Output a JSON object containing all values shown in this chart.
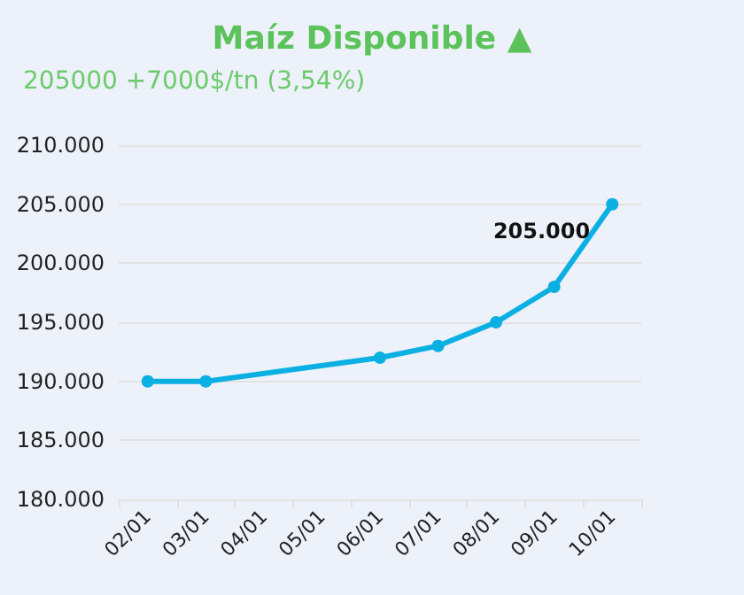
{
  "chart_data": {
    "type": "line",
    "title": "Maíz Disponible ▲",
    "subtitle": "205000 +7000$/tn (3,54%)",
    "categories": [
      "02/01",
      "03/01",
      "04/01",
      "05/01",
      "06/01",
      "07/01",
      "08/01",
      "09/01",
      "10/01"
    ],
    "series": [
      {
        "color": "#0bb0e3",
        "values": [
          190000,
          190000,
          null,
          null,
          192000,
          193000,
          195000,
          198000,
          205000
        ],
        "value_labels": [
          null,
          null,
          null,
          null,
          null,
          null,
          null,
          null,
          "205.000"
        ]
      }
    ],
    "ylim": [
      180000,
      210000
    ],
    "yticks": [
      {
        "value": 180000,
        "label": "180.000"
      },
      {
        "value": 185000,
        "label": "185.000"
      },
      {
        "value": 190000,
        "label": "190.000"
      },
      {
        "value": 195000,
        "label": "195.000"
      },
      {
        "value": 200000,
        "label": "200.000"
      },
      {
        "value": 205000,
        "label": "205.000"
      },
      {
        "value": 210000,
        "label": "210.000"
      }
    ],
    "grid": "y",
    "marker": "circle",
    "line_style": "solid"
  }
}
